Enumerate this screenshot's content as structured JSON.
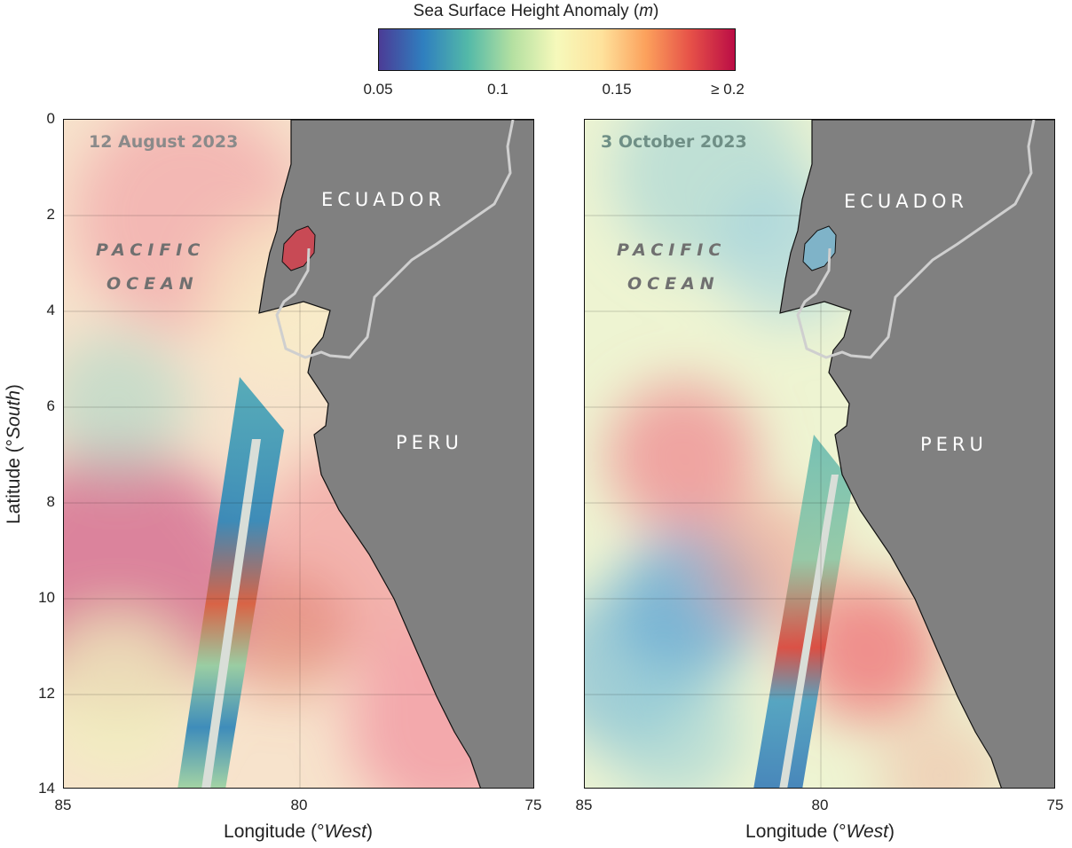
{
  "colorbar": {
    "title_prefix": "Sea Surface Height Anomaly (",
    "title_unit": "m",
    "title_suffix": ")",
    "ticks": [
      "0.05",
      "0.1",
      "0.15",
      "≥ 0.2"
    ],
    "colors": [
      "#4b3c96",
      "#2f7fbf",
      "#53b9a8",
      "#b4e0a1",
      "#f6f9bb",
      "#fee29c",
      "#fca15c",
      "#e65148",
      "#bb0d45"
    ]
  },
  "y_axis": {
    "label_prefix": "Latitude (°",
    "label_unit": "South",
    "label_suffix": ")",
    "ticks": [
      "0",
      "2",
      "4",
      "6",
      "8",
      "10",
      "12",
      "14"
    ]
  },
  "x_axis": {
    "label_prefix": "Longitude (°",
    "label_unit": "West",
    "label_suffix": ")",
    "ticks": [
      "85",
      "80",
      "75"
    ]
  },
  "panels": [
    {
      "date": "12 August 2023",
      "ocean_line1": "PACIFIC",
      "ocean_line2": "OCEAN",
      "country_north": "ECUADOR",
      "country_south": "PERU",
      "background_color": "#f7e3cc",
      "date_color": "#8a8a8a"
    },
    {
      "date": "3 October 2023",
      "ocean_line1": "PACIFIC",
      "ocean_line2": "OCEAN",
      "country_north": "ECUADOR",
      "country_south": "PERU",
      "background_color": "#eef4d2",
      "date_color": "#6f8f86"
    }
  ],
  "land_color": "#808080",
  "border_color": "#cfcfcf"
}
